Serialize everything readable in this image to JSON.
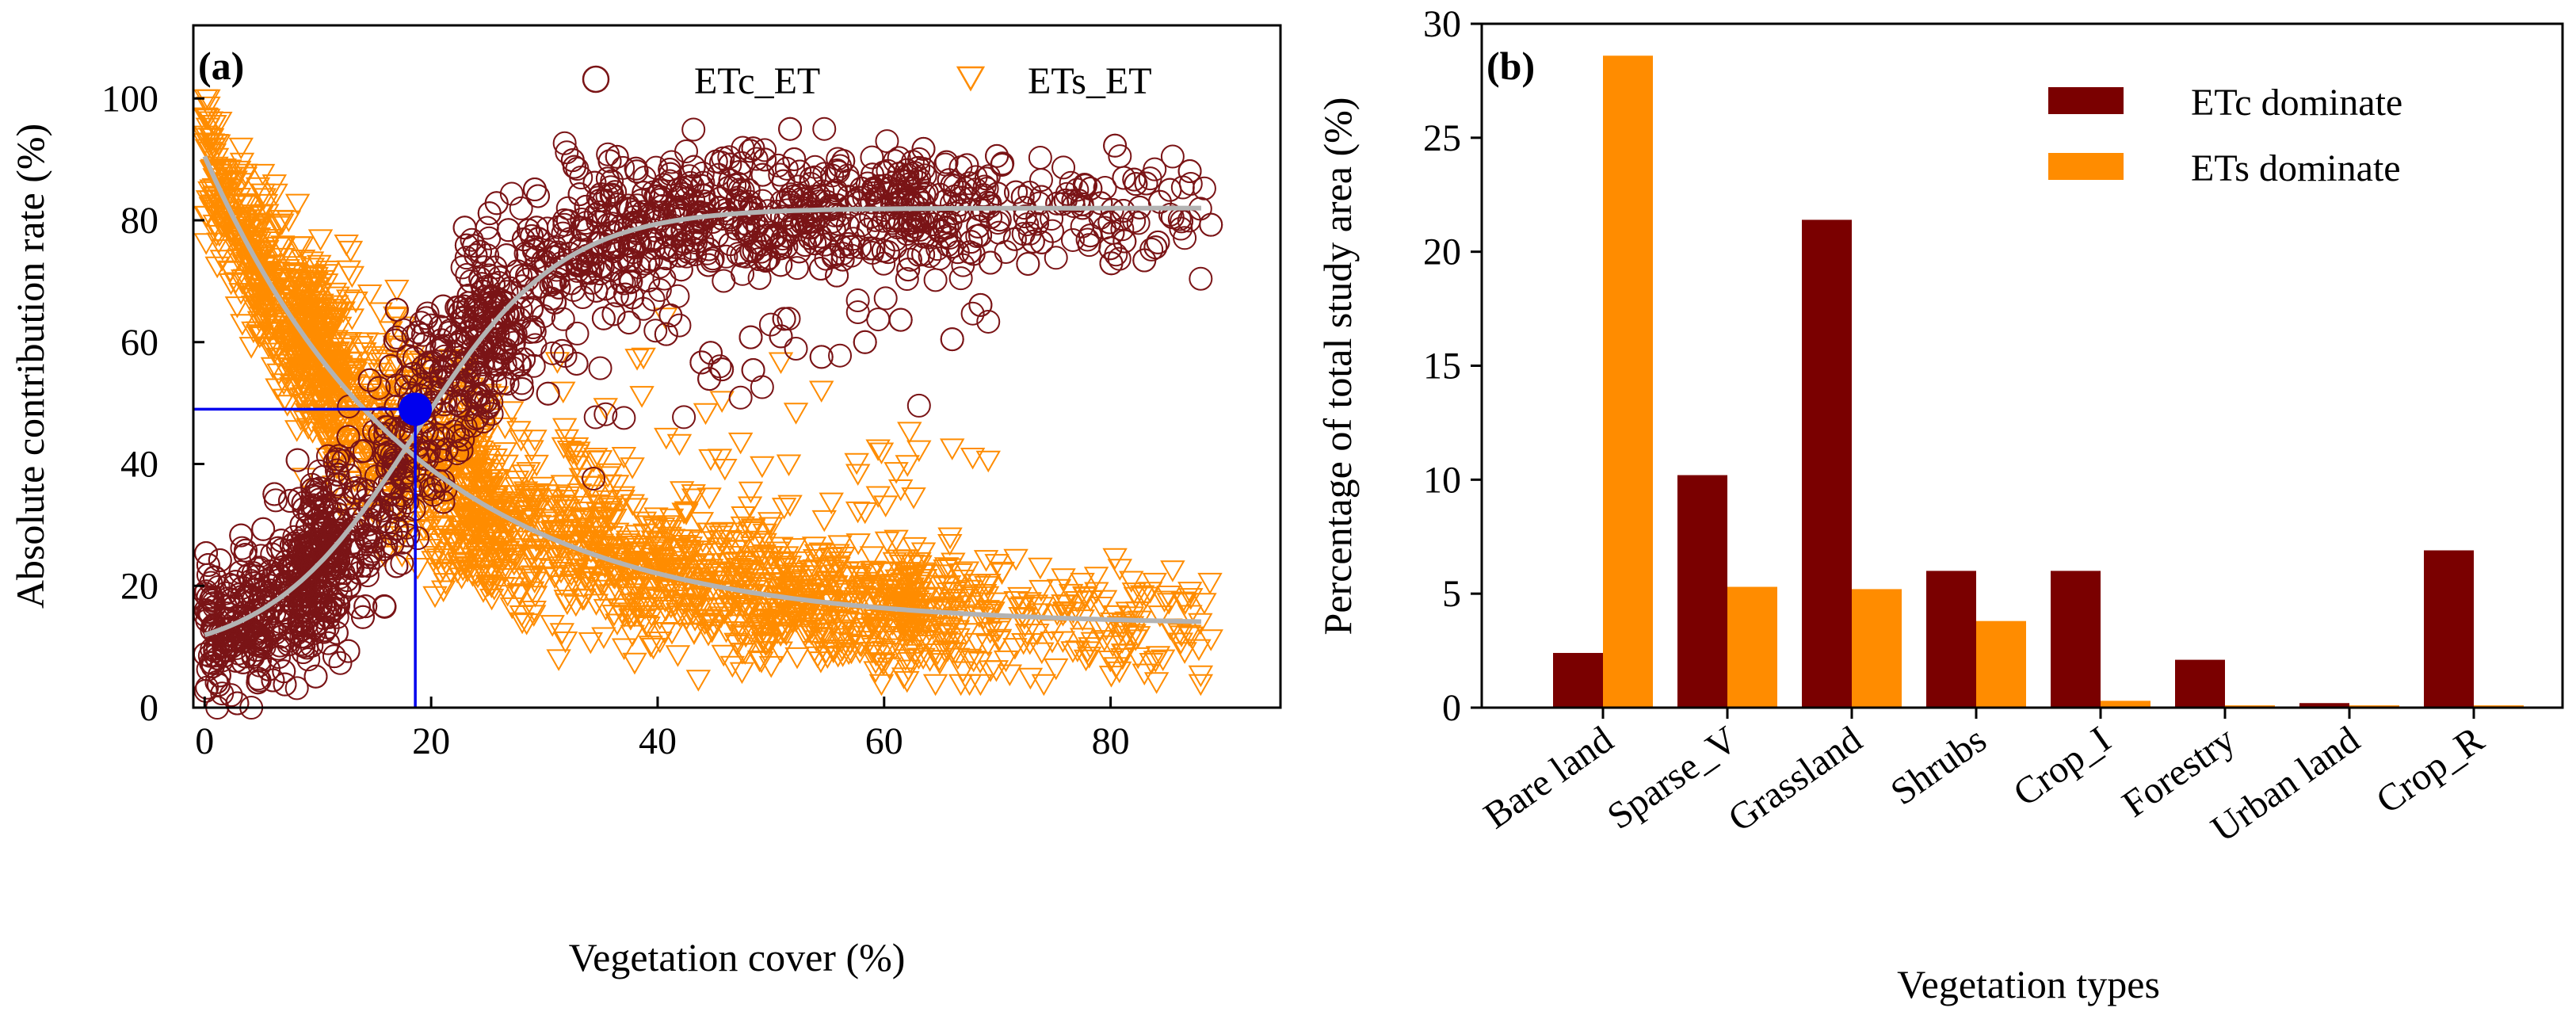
{
  "chart_data": [
    {
      "type": "scatter",
      "panel_label": "(a)",
      "xlabel": "Vegetation cover (%)",
      "ylabel": "Absolute contribution rate (%)",
      "xlim": [
        -1,
        95
      ],
      "ylim": [
        0,
        112
      ],
      "xticks": [
        0,
        20,
        40,
        60,
        80
      ],
      "yticks": [
        0,
        20,
        40,
        60,
        80,
        100
      ],
      "grid": false,
      "legend_position": "top",
      "series": [
        {
          "name": "ETc_ET",
          "marker": "circle",
          "color": "#7a1416",
          "fit": {
            "form": "logistic",
            "lower": 8,
            "upper": 82,
            "midpoint": 18.6,
            "slope": 0.155
          },
          "n_points": 2400
        },
        {
          "name": "ETs_ET",
          "marker": "triangle-down",
          "color": "#ff8c00",
          "fit": {
            "form": "exponential-decay",
            "asymptote": 13.5,
            "amplitude": 77,
            "rate": 0.055
          },
          "n_points": 2400
        }
      ],
      "fit_line_color": "#b3b3b3",
      "intersection": {
        "x": 18.6,
        "y": 49,
        "color": "#0000ee"
      }
    },
    {
      "type": "bar",
      "panel_label": "(b)",
      "xlabel": "Vegetation types",
      "ylabel": "Percentage of total study area (%)",
      "ylim": [
        0,
        30
      ],
      "yticks": [
        0,
        5,
        10,
        15,
        20,
        25,
        30
      ],
      "grid": false,
      "legend_position": "top-right",
      "categories": [
        "Bare land",
        "Sparse_V",
        "Grassland",
        "Shrubs",
        "Crop_I",
        "Forestry",
        "Urban land",
        "Crop_R"
      ],
      "series": [
        {
          "name": "ETc dominate",
          "color": "#7a0000",
          "values": [
            2.4,
            10.2,
            21.4,
            6.0,
            6.0,
            2.1,
            0.2,
            6.9
          ]
        },
        {
          "name": "ETs dominate",
          "color": "#ff8c00",
          "values": [
            28.6,
            5.3,
            5.2,
            3.8,
            0.3,
            0.1,
            0.1,
            0.1
          ]
        }
      ]
    }
  ]
}
